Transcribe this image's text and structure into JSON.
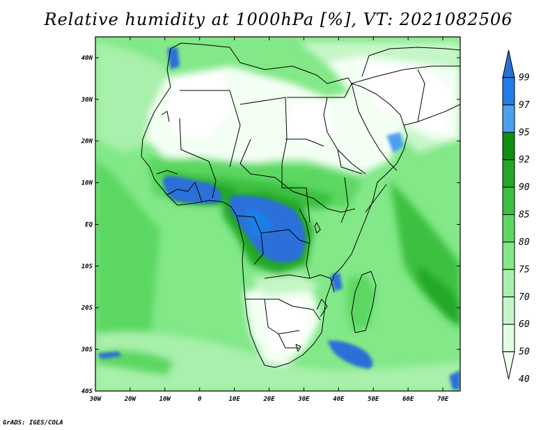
{
  "title": "Relative humidity at 1000hPa [%], VT: 2021082506",
  "credit": "GrADS: IGES/COLA",
  "map": {
    "lon_ticks": [
      "30W",
      "20W",
      "10W",
      "0",
      "10E",
      "20E",
      "30E",
      "40E",
      "50E",
      "60E",
      "70E"
    ],
    "lat_ticks": [
      "40N",
      "30N",
      "20N",
      "10N",
      "EQ",
      "10S",
      "20S",
      "30S",
      "40S"
    ],
    "lon_range": [
      -30,
      75
    ],
    "lat_range": [
      -40,
      45
    ]
  },
  "colorbar": {
    "levels": [
      "99",
      "97",
      "95",
      "92",
      "90",
      "85",
      "80",
      "75",
      "70",
      "60",
      "50",
      "40"
    ],
    "colors": [
      "#2a6fd8",
      "#1f7fe8",
      "#4aa0f0",
      "#0f8f12",
      "#22a826",
      "#3cc040",
      "#5cd862",
      "#82e888",
      "#a8f0ab",
      "#c6f6c8",
      "#e2fbe3",
      "#f4fff4"
    ]
  }
}
